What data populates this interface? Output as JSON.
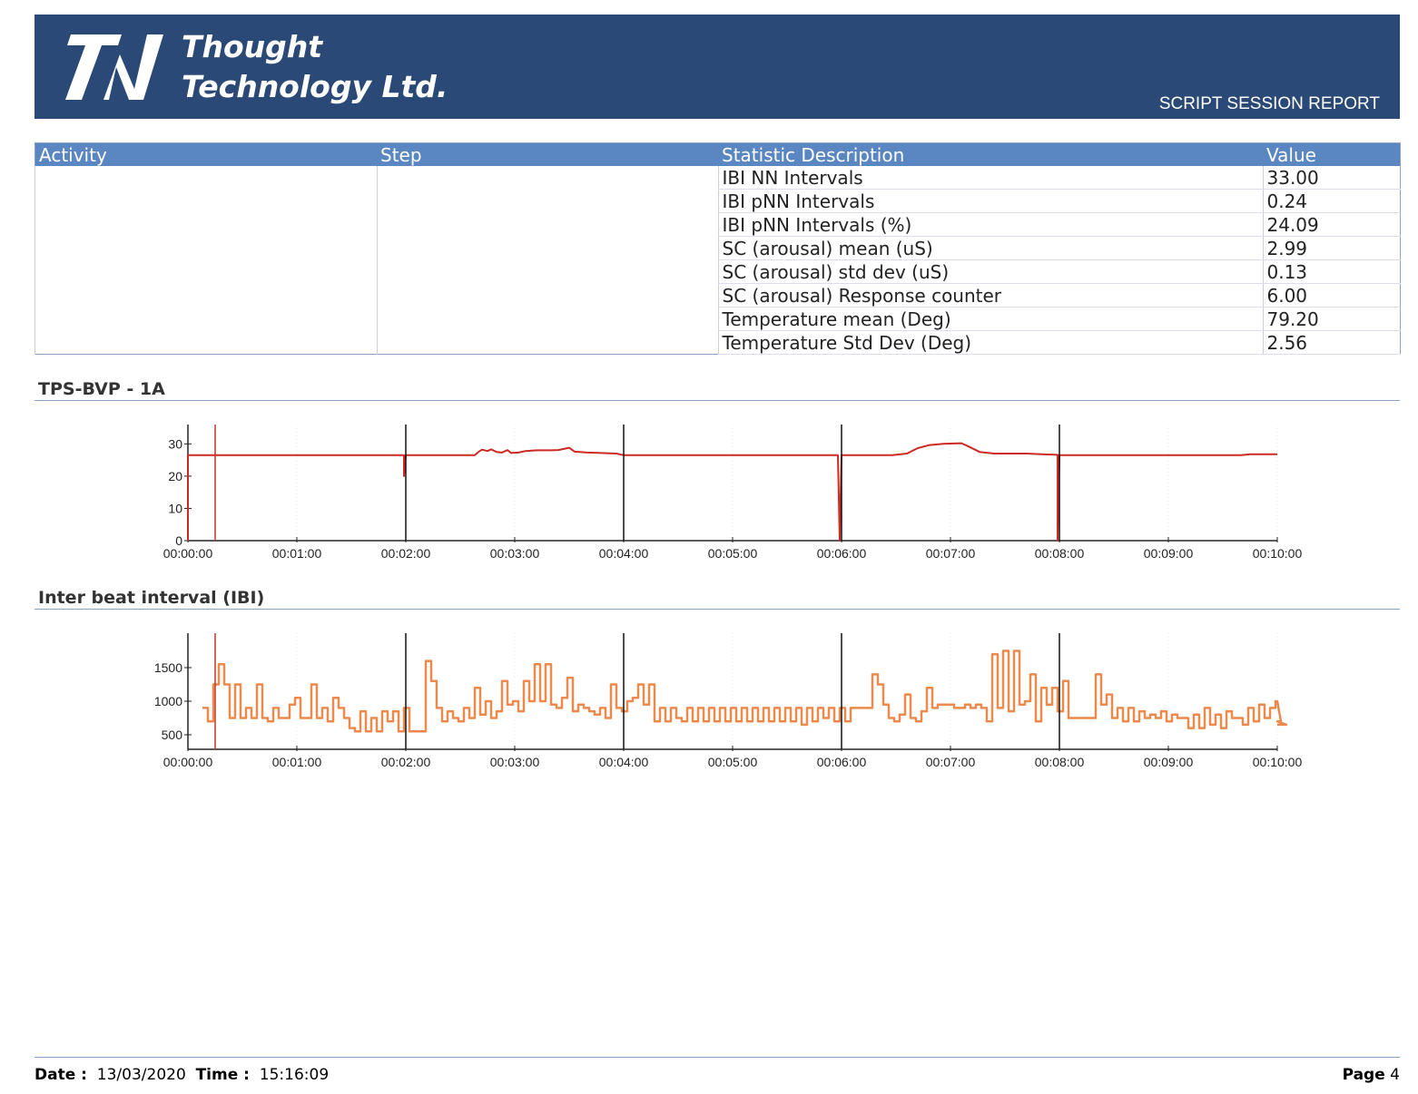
{
  "header": {
    "company_line1": "Thought",
    "company_line2": "Technology Ltd.",
    "report_title": "SCRIPT SESSION REPORT",
    "brand_color": "#2b4977"
  },
  "table": {
    "columns": [
      "Activity",
      "Step",
      "Statistic Description",
      "Value"
    ],
    "rows": [
      {
        "statistic": "IBI NN Intervals",
        "value": "33.00"
      },
      {
        "statistic": "IBI pNN Intervals",
        "value": "0.24"
      },
      {
        "statistic": "IBI pNN Intervals (%)",
        "value": "24.09"
      },
      {
        "statistic": "SC (arousal) mean (uS)",
        "value": "2.99"
      },
      {
        "statistic": "SC (arousal) std dev (uS)",
        "value": "0.13"
      },
      {
        "statistic": "SC (arousal) Response counter",
        "value": "6.00"
      },
      {
        "statistic": "Temperature mean (Deg)",
        "value": "79.20"
      },
      {
        "statistic": "Temperature Std Dev (Deg)",
        "value": "2.56"
      }
    ]
  },
  "chart_data": [
    {
      "type": "line",
      "title": "TPS-BVP - 1A",
      "color": "#cc2a22",
      "x_unit": "seconds",
      "xlim": [
        0,
        600
      ],
      "ylim": [
        0,
        36
      ],
      "yticks": [
        0,
        10,
        20,
        30
      ],
      "xtick_labels": [
        "00:00:00",
        "00:01:00",
        "00:02:00",
        "00:03:00",
        "00:04:00",
        "00:05:00",
        "00:06:00",
        "00:07:00",
        "00:08:00",
        "00:09:00",
        "00:10:00"
      ],
      "event_markers": [
        120,
        240,
        360,
        480
      ],
      "cursor_marker": 15,
      "points": [
        [
          0,
          0
        ],
        [
          0,
          26.5
        ],
        [
          119,
          26.5
        ],
        [
          119,
          20
        ],
        [
          120,
          26.5
        ],
        [
          158,
          26.5
        ],
        [
          160,
          27.5
        ],
        [
          162,
          28.2
        ],
        [
          165,
          27.8
        ],
        [
          167,
          28.3
        ],
        [
          170,
          27.5
        ],
        [
          173,
          27.3
        ],
        [
          176,
          28.1
        ],
        [
          178,
          27.2
        ],
        [
          182,
          27.3
        ],
        [
          186,
          27.8
        ],
        [
          192,
          28
        ],
        [
          200,
          28
        ],
        [
          204,
          28.1
        ],
        [
          210,
          28.8
        ],
        [
          213,
          27.6
        ],
        [
          220,
          27.3
        ],
        [
          226,
          27.2
        ],
        [
          236,
          27
        ],
        [
          240,
          26.5
        ],
        [
          358,
          26.5
        ],
        [
          359,
          0
        ],
        [
          360,
          26.5
        ],
        [
          388,
          26.5
        ],
        [
          396,
          27
        ],
        [
          402,
          28.7
        ],
        [
          408,
          29.6
        ],
        [
          416,
          30
        ],
        [
          426,
          30.2
        ],
        [
          430,
          29.2
        ],
        [
          436,
          27.5
        ],
        [
          444,
          27
        ],
        [
          462,
          27
        ],
        [
          470,
          26.8
        ],
        [
          479,
          26.6
        ],
        [
          479,
          0
        ],
        [
          480,
          26.5
        ],
        [
          500,
          26.5
        ],
        [
          540,
          26.5
        ],
        [
          580,
          26.5
        ],
        [
          585,
          26.8
        ],
        [
          600,
          26.8
        ]
      ]
    },
    {
      "type": "line",
      "title": "Inter beat interval (IBI)",
      "color": "#eb8a4c",
      "x_unit": "seconds",
      "xlim": [
        0,
        600
      ],
      "ylim": [
        284,
        2013
      ],
      "yticks": [
        500,
        1000,
        1500
      ],
      "xtick_labels": [
        "00:00:00",
        "00:01:00",
        "00:02:00",
        "00:03:00",
        "00:04:00",
        "00:05:00",
        "00:06:00",
        "00:07:00",
        "00:08:00",
        "00:09:00",
        "00:10:00"
      ],
      "event_markers": [
        120,
        240,
        360,
        480
      ],
      "cursor_marker": 15,
      "x_start": 8,
      "step": 3,
      "values": [
        900,
        700,
        1250,
        1550,
        1250,
        750,
        1250,
        750,
        900,
        750,
        1250,
        750,
        700,
        900,
        750,
        750,
        950,
        1050,
        750,
        750,
        1250,
        750,
        900,
        700,
        1050,
        900,
        750,
        600,
        550,
        850,
        550,
        750,
        550,
        850,
        700,
        850,
        550,
        900,
        550,
        550,
        550,
        1600,
        1300,
        900,
        700,
        850,
        750,
        700,
        900,
        750,
        1200,
        800,
        1000,
        750,
        850,
        1300,
        950,
        1000,
        850,
        1300,
        1000,
        1550,
        1000,
        1550,
        950,
        900,
        1050,
        1350,
        850,
        950,
        900,
        850,
        800,
        900,
        750,
        1250,
        900,
        850,
        1000,
        1050,
        1250,
        950,
        1250,
        700,
        900,
        700,
        900,
        750,
        700,
        900,
        700,
        900,
        700,
        900,
        700,
        900,
        700,
        900,
        700,
        900,
        700,
        900,
        700,
        900,
        700,
        900,
        700,
        900,
        700,
        900,
        650,
        900,
        700,
        900,
        750,
        900,
        700,
        900,
        700,
        900,
        900,
        900,
        900,
        1400,
        1250,
        950,
        750,
        700,
        800,
        1100,
        750,
        700,
        850,
        1200,
        900,
        950,
        950,
        950,
        900,
        900,
        950,
        900,
        950,
        900,
        700,
        1700,
        900,
        1750,
        850,
        1750,
        950,
        1000,
        1400,
        700,
        1200,
        950,
        1200,
        850,
        1300,
        750,
        750,
        750,
        750,
        750,
        1400,
        950,
        1100,
        750,
        900,
        700,
        900,
        700,
        850,
        750,
        800,
        750,
        850,
        700,
        800,
        750,
        750,
        600,
        800,
        600,
        900,
        650,
        800,
        600,
        850,
        750,
        750,
        650,
        900,
        700,
        950,
        750,
        900,
        1000,
        700,
        650
      ]
    }
  ],
  "footer": {
    "date_label": "Date :",
    "date": "13/03/2020",
    "time_label": "Time :",
    "time": "15:16:09",
    "page_label": "Page",
    "page": "4"
  }
}
